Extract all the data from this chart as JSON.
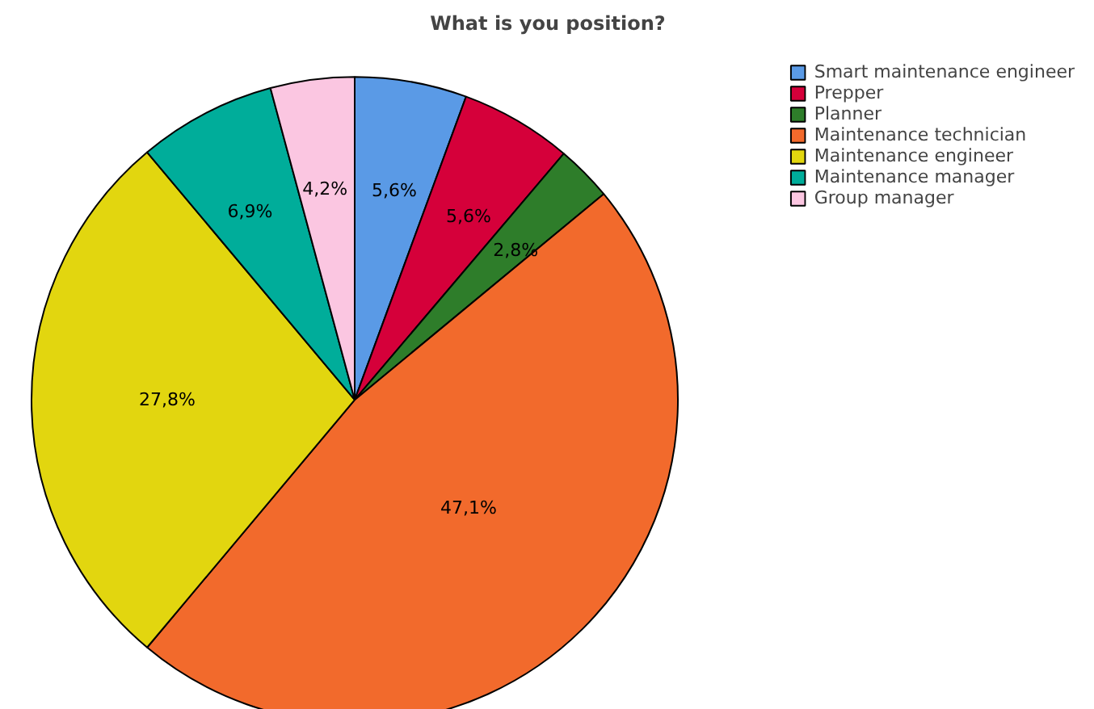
{
  "chart_data": {
    "type": "pie",
    "title": "What is you position?",
    "categories": [
      "Smart maintenance engineer",
      "Prepper",
      "Planner",
      "Maintenance technician",
      "Maintenance engineer",
      "Maintenance manager",
      "Group manager"
    ],
    "values": [
      5.6,
      5.6,
      2.8,
      47.1,
      27.8,
      6.9,
      4.2
    ],
    "colors": [
      "#5a9ae6",
      "#d5003a",
      "#2e7d2a",
      "#f26a2c",
      "#e2d60f",
      "#00ad9a",
      "#fbc6e1"
    ],
    "value_labels": [
      "5,6%",
      "5,6%",
      "2,8%",
      "47,1%",
      "27,8%",
      "6,9%",
      "4,2%"
    ],
    "legend": "top right"
  }
}
